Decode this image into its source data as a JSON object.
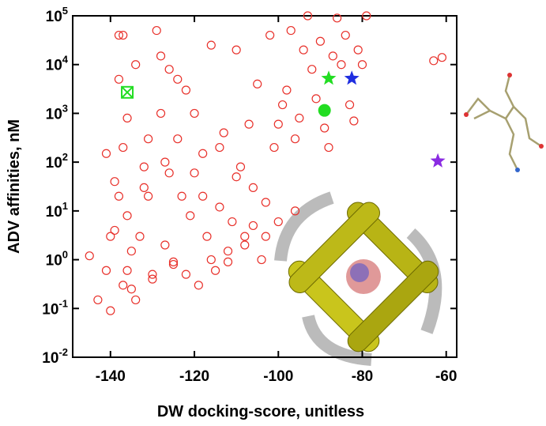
{
  "chart_data": {
    "type": "scatter",
    "xlabel": "DW docking-score, unitless",
    "ylabel": "ADV affinities, nM",
    "xlim": [
      -149,
      -57.5
    ],
    "ylim": [
      0.01,
      100000
    ],
    "log_y": true,
    "xticks": [
      -140,
      -120,
      -100,
      -80,
      -60
    ],
    "yticks": [
      {
        "value": 0.01,
        "label": "10",
        "power": "-2"
      },
      {
        "value": 0.1,
        "label": "10",
        "power": "-1"
      },
      {
        "value": 1,
        "label": "10",
        "power": "0"
      },
      {
        "value": 10,
        "label": "10",
        "power": "1"
      },
      {
        "value": 100,
        "label": "10",
        "power": "2"
      },
      {
        "value": 1000,
        "label": "10",
        "power": "3"
      },
      {
        "value": 10000,
        "label": "10",
        "power": "4"
      },
      {
        "value": 100000,
        "label": "10",
        "power": "5"
      }
    ],
    "series": [
      {
        "color": "#e8302a",
        "marker": "circle-open",
        "x": [
          -145,
          -143,
          -141,
          -140,
          -139,
          -141,
          -139,
          -138,
          -137,
          -136,
          -137,
          -138,
          -136,
          -135,
          -134,
          -133,
          -132,
          -134,
          -138,
          -137,
          -131,
          -130,
          -129,
          -128,
          -127,
          -126,
          -125,
          -124,
          -123,
          -122,
          -121,
          -120,
          -119,
          -118,
          -117,
          -116,
          -115,
          -114,
          -113,
          -112,
          -111,
          -110,
          -109,
          -108,
          -107,
          -106,
          -105,
          -104,
          -103,
          -102,
          -101,
          -100,
          -99,
          -98,
          -97,
          -96,
          -95,
          -94,
          -93,
          -92,
          -91,
          -90,
          -89,
          -88,
          -87,
          -86,
          -85,
          -84,
          -83,
          -82,
          -81,
          -80,
          -79,
          -63,
          -61,
          -108,
          -112,
          -125,
          -130,
          -135,
          -127,
          -122,
          -118,
          -114,
          -110,
          -106,
          -103,
          -100,
          -96,
          -128,
          -132,
          -126,
          -120,
          -116,
          -131,
          -124,
          -140,
          -136
        ],
        "values": [
          1.2,
          0.15,
          0.6,
          0.09,
          4,
          150,
          40,
          20,
          0.3,
          8,
          200,
          5000,
          800,
          1.5,
          0.15,
          3,
          30,
          10000,
          40000,
          40000,
          300,
          0.4,
          50000,
          15000,
          2,
          60,
          0.8,
          5000,
          20,
          0.5,
          8,
          1000,
          0.3,
          150,
          3,
          25000,
          0.6,
          12,
          400,
          1.5,
          6,
          20000,
          80,
          2,
          600,
          30,
          4000,
          1,
          15,
          40000,
          200,
          6,
          1500,
          3000,
          50000,
          300,
          800,
          20000,
          100000,
          8000,
          2000,
          30000,
          500,
          200,
          15000,
          90000,
          10000,
          40000,
          1500,
          700,
          20000,
          10000,
          100000,
          12000,
          14000,
          3,
          0.9,
          0.9,
          0.5,
          0.25,
          100,
          3000,
          20,
          200,
          50,
          5,
          3,
          600,
          10,
          1000,
          80,
          8000,
          60,
          1,
          20,
          300,
          3,
          0.6
        ]
      },
      {
        "color": "#22dd22",
        "marker": "square-x",
        "x": [
          -136
        ],
        "values": [
          2700
        ]
      },
      {
        "color": "#22dd22",
        "marker": "circle",
        "x": [
          -89
        ],
        "values": [
          1150
        ]
      },
      {
        "color": "#22dd22",
        "marker": "star",
        "x": [
          -88
        ],
        "values": [
          5200
        ]
      },
      {
        "color": "#1f2ee0",
        "marker": "star",
        "x": [
          -82.5
        ],
        "values": [
          5200
        ]
      },
      {
        "color": "#8a2be2",
        "marker": "star",
        "x": [
          -62
        ],
        "values": [
          105
        ]
      }
    ]
  }
}
